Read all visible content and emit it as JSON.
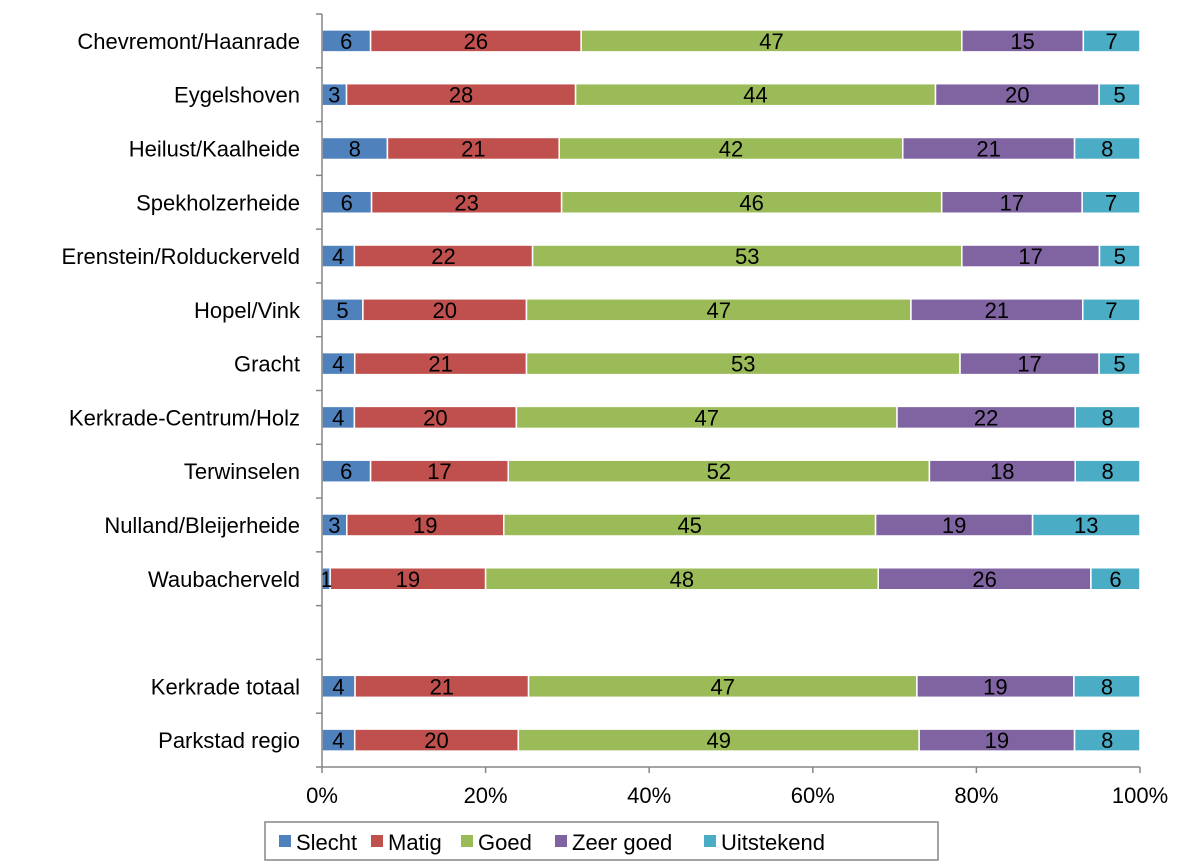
{
  "chart_data": {
    "type": "bar",
    "orientation": "horizontal",
    "stacked": "percent",
    "categories": [
      "Chevremont/Haanrade",
      "Eygelshoven",
      "Heilust/Kaalheide",
      "Spekholzerheide",
      "Erenstein/Rolduckerveld",
      "Hopel/Vink",
      "Gracht",
      "Kerkrade-Centrum/Holz",
      "Terwinselen",
      "Nulland/Bleijerheide",
      "Waubacherveld",
      "",
      "Kerkrade totaal",
      "Parkstad regio"
    ],
    "series": [
      {
        "name": "Slecht",
        "color": "#4f81bd",
        "values": [
          6,
          3,
          8,
          6,
          4,
          5,
          4,
          4,
          6,
          3,
          1,
          null,
          4,
          4
        ]
      },
      {
        "name": "Matig",
        "color": "#c0504d",
        "values": [
          26,
          28,
          21,
          23,
          22,
          20,
          21,
          20,
          17,
          19,
          19,
          null,
          21,
          20
        ]
      },
      {
        "name": "Goed",
        "color": "#9bbb59",
        "values": [
          47,
          44,
          42,
          46,
          53,
          47,
          53,
          47,
          52,
          45,
          48,
          null,
          47,
          49
        ]
      },
      {
        "name": "Zeer goed",
        "color": "#8064a2",
        "values": [
          15,
          20,
          21,
          17,
          17,
          21,
          17,
          22,
          18,
          19,
          26,
          null,
          19,
          19
        ]
      },
      {
        "name": "Uitstekend",
        "color": "#4bacc6",
        "values": [
          7,
          5,
          8,
          7,
          5,
          7,
          5,
          8,
          8,
          13,
          6,
          null,
          8,
          8
        ]
      }
    ],
    "xaxis": {
      "ticks": [
        "0%",
        "20%",
        "40%",
        "60%",
        "80%",
        "100%"
      ],
      "range": [
        0,
        100
      ]
    },
    "title": "",
    "xlabel": "",
    "ylabel": "",
    "grid": false,
    "legend": "bottom"
  }
}
